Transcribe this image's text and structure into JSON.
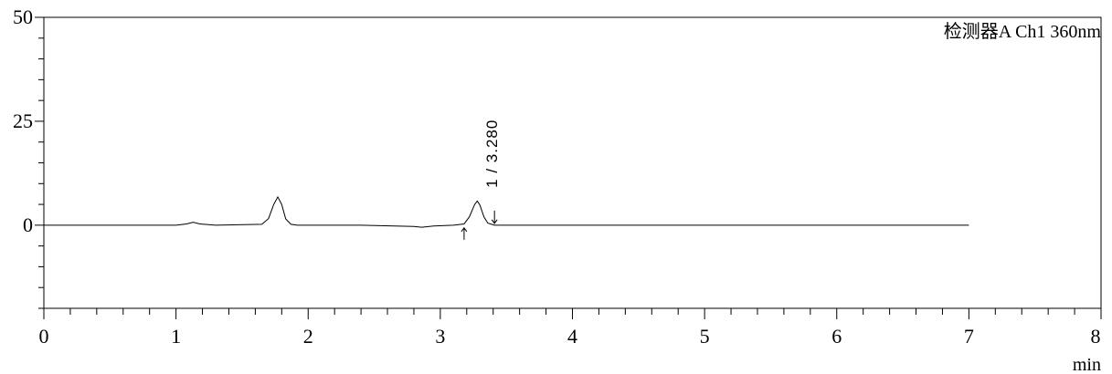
{
  "chart_data": {
    "type": "line",
    "title": "",
    "detector_label": "检测器A Ch1 360nm",
    "xlabel": "min",
    "ylabel": "",
    "xlim": [
      0,
      8
    ],
    "ylim": [
      -20,
      50
    ],
    "x_ticks": [
      0,
      1,
      2,
      3,
      4,
      5,
      6,
      7,
      8
    ],
    "y_ticks": [
      0,
      25,
      50
    ],
    "grid": false,
    "series": [
      {
        "x": [
          0,
          1.0,
          1.08,
          1.13,
          1.18,
          1.3,
          1.65,
          1.7,
          1.74,
          1.77,
          1.8,
          1.83,
          1.87,
          1.92,
          2.0,
          2.4,
          2.8,
          2.86,
          2.95,
          3.1,
          3.18,
          3.22,
          3.26,
          3.28,
          3.3,
          3.33,
          3.36,
          3.41,
          3.5,
          4.0,
          5.0,
          6.0,
          7.0
        ],
        "y": [
          0,
          0,
          0.3,
          0.7,
          0.3,
          0,
          0.2,
          1.6,
          5.0,
          6.8,
          5.0,
          1.5,
          0.2,
          0,
          0,
          0,
          -0.3,
          -0.5,
          -0.2,
          0,
          0.3,
          2.0,
          5.0,
          5.8,
          4.8,
          2.0,
          0.5,
          0,
          0,
          0,
          0,
          0,
          0
        ]
      }
    ],
    "peaks": [
      {
        "label": "1 / 3.280",
        "retention_time": 3.28,
        "start": 3.18,
        "end": 3.41
      }
    ]
  }
}
